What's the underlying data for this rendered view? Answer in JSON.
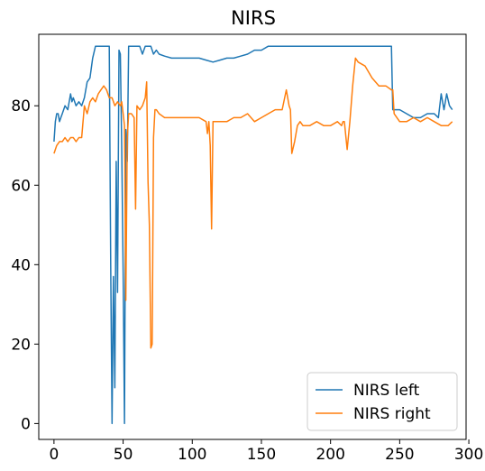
{
  "chart_data": {
    "type": "line",
    "title": "NIRS",
    "xlabel": "",
    "ylabel": "",
    "xlim": [
      -11,
      298
    ],
    "ylim": [
      -4,
      98
    ],
    "xticks": [
      0,
      50,
      100,
      150,
      200,
      250,
      300
    ],
    "yticks": [
      0,
      20,
      40,
      60,
      80
    ],
    "grid": false,
    "legend_position": "lower right",
    "series": [
      {
        "name": "NIRS left",
        "color": "#1f77b4",
        "x": [
          0,
          1,
          2,
          3,
          4,
          5,
          6,
          7,
          8,
          10,
          12,
          13,
          14,
          16,
          18,
          20,
          22,
          24,
          26,
          28,
          30,
          32,
          34,
          36,
          38,
          40,
          41,
          42,
          43,
          44,
          45,
          46,
          47,
          48,
          49,
          50,
          51,
          52,
          53,
          54,
          56,
          58,
          60,
          62,
          64,
          66,
          68,
          70,
          72,
          74,
          76,
          80,
          85,
          90,
          95,
          100,
          105,
          110,
          115,
          120,
          125,
          130,
          135,
          140,
          145,
          150,
          155,
          160,
          170,
          180,
          190,
          200,
          210,
          220,
          230,
          240,
          244,
          245,
          246,
          250,
          255,
          260,
          265,
          270,
          275,
          278,
          280,
          282,
          284,
          286,
          288
        ],
        "y": [
          71,
          76,
          78,
          78,
          76,
          77,
          78,
          79,
          80,
          79,
          83,
          81,
          82,
          80,
          81,
          80,
          82,
          86,
          87,
          92,
          95,
          95,
          95,
          95,
          95,
          95,
          40,
          0,
          37,
          9,
          66,
          33,
          94,
          93,
          70,
          38,
          0,
          74,
          66,
          95,
          95,
          95,
          95,
          95,
          93,
          95,
          95,
          95,
          93,
          94,
          93,
          92.5,
          92,
          92,
          92,
          92,
          92,
          91.5,
          91,
          91.5,
          92,
          92,
          92.5,
          93,
          94,
          94,
          95,
          95,
          95,
          95,
          95,
          95,
          95,
          95,
          95,
          95,
          95,
          79,
          79,
          79,
          78,
          77,
          77,
          78,
          78,
          77,
          83,
          79,
          83,
          80,
          79
        ]
      },
      {
        "name": "NIRS right",
        "color": "#ff7f0e",
        "x": [
          0,
          2,
          4,
          6,
          8,
          10,
          12,
          14,
          16,
          18,
          20,
          22,
          24,
          26,
          28,
          30,
          32,
          34,
          36,
          38,
          40,
          42,
          44,
          46,
          48,
          49,
          50,
          51,
          52,
          53,
          54,
          56,
          58,
          59,
          60,
          62,
          64,
          66,
          67,
          68,
          69,
          70,
          71,
          72,
          73,
          74,
          76,
          80,
          85,
          90,
          95,
          100,
          105,
          110,
          111,
          112,
          113,
          114,
          115,
          116,
          120,
          125,
          130,
          135,
          140,
          145,
          150,
          155,
          160,
          165,
          168,
          170,
          171,
          172,
          174,
          176,
          178,
          180,
          185,
          190,
          195,
          200,
          205,
          208,
          209,
          210,
          212,
          214,
          216,
          218,
          220,
          225,
          230,
          235,
          240,
          244,
          245,
          246,
          248,
          250,
          255,
          260,
          265,
          270,
          275,
          280,
          285,
          288
        ],
        "y": [
          68,
          70,
          71,
          71,
          72,
          71,
          72,
          72,
          71,
          72,
          72,
          80,
          78,
          81,
          82,
          81,
          83,
          84,
          85,
          84,
          82,
          82,
          80,
          81,
          80,
          81,
          78,
          75,
          31,
          72,
          78,
          78,
          77,
          54,
          80,
          79,
          80,
          82,
          86,
          61,
          50,
          19,
          20,
          72,
          79,
          79,
          78,
          77,
          77,
          77,
          77,
          77,
          77,
          76,
          73,
          76,
          70,
          49,
          76,
          76,
          76,
          76,
          77,
          77,
          78,
          76,
          77,
          78,
          79,
          79,
          84,
          80,
          79,
          68,
          71,
          75,
          76,
          75,
          75,
          76,
          75,
          75,
          76,
          75,
          76,
          76,
          69,
          76,
          85,
          92,
          91,
          90,
          87,
          85,
          85,
          84,
          84,
          78,
          77,
          76,
          76,
          77,
          76,
          77,
          76,
          75,
          75,
          76
        ]
      }
    ]
  }
}
